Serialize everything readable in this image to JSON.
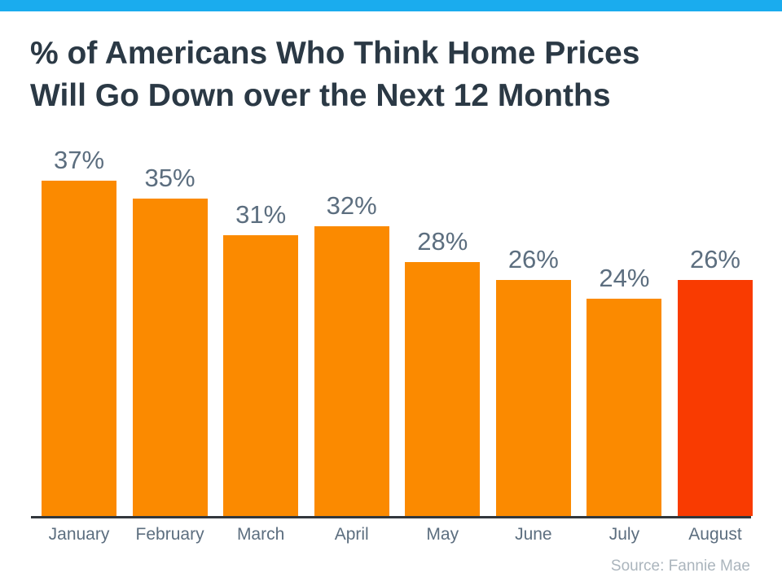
{
  "page": {
    "top_bar_color": "#1AACEE",
    "background_color": "#FFFFFF"
  },
  "title": {
    "line1": "% of Americans Who Think Home Prices",
    "line2": "Will Go Down over the Next 12 Months",
    "color": "#2B3945"
  },
  "source": {
    "label": "Source: Fannie Mae",
    "color": "#ABB5BD"
  },
  "chart_data": {
    "type": "bar",
    "title": "% of Americans Who Think Home Prices Will Go Down over the Next 12 Months",
    "categories": [
      "January",
      "February",
      "March",
      "April",
      "May",
      "June",
      "July",
      "August"
    ],
    "values": [
      37,
      35,
      31,
      32,
      28,
      26,
      24,
      26
    ],
    "value_labels": [
      "37%",
      "35%",
      "31%",
      "32%",
      "28%",
      "26%",
      "24%",
      "26%"
    ],
    "xlabel": "",
    "ylabel": "",
    "ylim": [
      0,
      40
    ],
    "grid": false,
    "legend": false,
    "bar_color": "#FB8A00",
    "highlight_color": "#F93B01",
    "highlight_index": 7,
    "value_label_color": "#5C6E7F",
    "category_label_color": "#5C6E7F",
    "axis_line_color": "#32373C"
  }
}
